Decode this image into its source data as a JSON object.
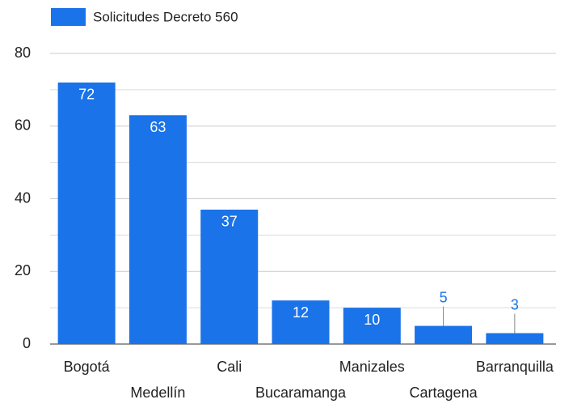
{
  "chart_data": {
    "type": "bar",
    "categories": [
      "Bogotá",
      "Medellín",
      "Cali",
      "Bucaramanga",
      "Manizales",
      "Cartagena",
      "Barranquilla"
    ],
    "series": [
      {
        "name": "Solicitudes Decreto 560",
        "color": "#1a73e8",
        "values": [
          72,
          63,
          37,
          12,
          10,
          5,
          3
        ]
      }
    ],
    "ylim": [
      0,
      80
    ],
    "yticks": [
      0,
      20,
      40,
      60,
      80
    ],
    "minor_yticks": [
      10,
      30,
      50,
      70
    ],
    "grid": true,
    "legend": "top-left",
    "data_labels": true
  }
}
